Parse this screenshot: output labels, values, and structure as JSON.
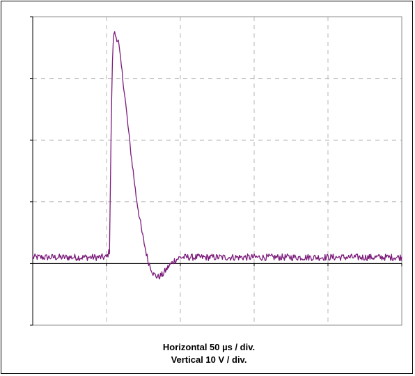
{
  "chart_data": {
    "type": "line",
    "caption_line1": "Horizontal 50 µs / div.",
    "caption_line2": "Vertical 10 V / div.",
    "x_unit": "µs",
    "y_unit": "V",
    "x_per_div": 50,
    "y_per_div": 10,
    "xlim": [
      0,
      250
    ],
    "ylim": [
      -10,
      40
    ],
    "grid": true,
    "series": [
      {
        "color": "#7a1a7a",
        "x": [
          0,
          20,
          40,
          50,
          52,
          53,
          54,
          55,
          58,
          62,
          66,
          70,
          74,
          78,
          82,
          85,
          88,
          92,
          96,
          100,
          104,
          110,
          120,
          140,
          160,
          180,
          200,
          220,
          240,
          250
        ],
        "y": [
          1.0,
          1.0,
          1.0,
          1.0,
          2.0,
          20.0,
          33.0,
          37.5,
          36.0,
          28.0,
          19.0,
          11.0,
          5.0,
          0.5,
          -1.8,
          -2.2,
          -1.8,
          -0.5,
          0.5,
          1.0,
          1.0,
          1.0,
          1.0,
          1.0,
          1.0,
          1.0,
          1.0,
          1.0,
          1.0,
          1.0
        ]
      }
    ]
  }
}
